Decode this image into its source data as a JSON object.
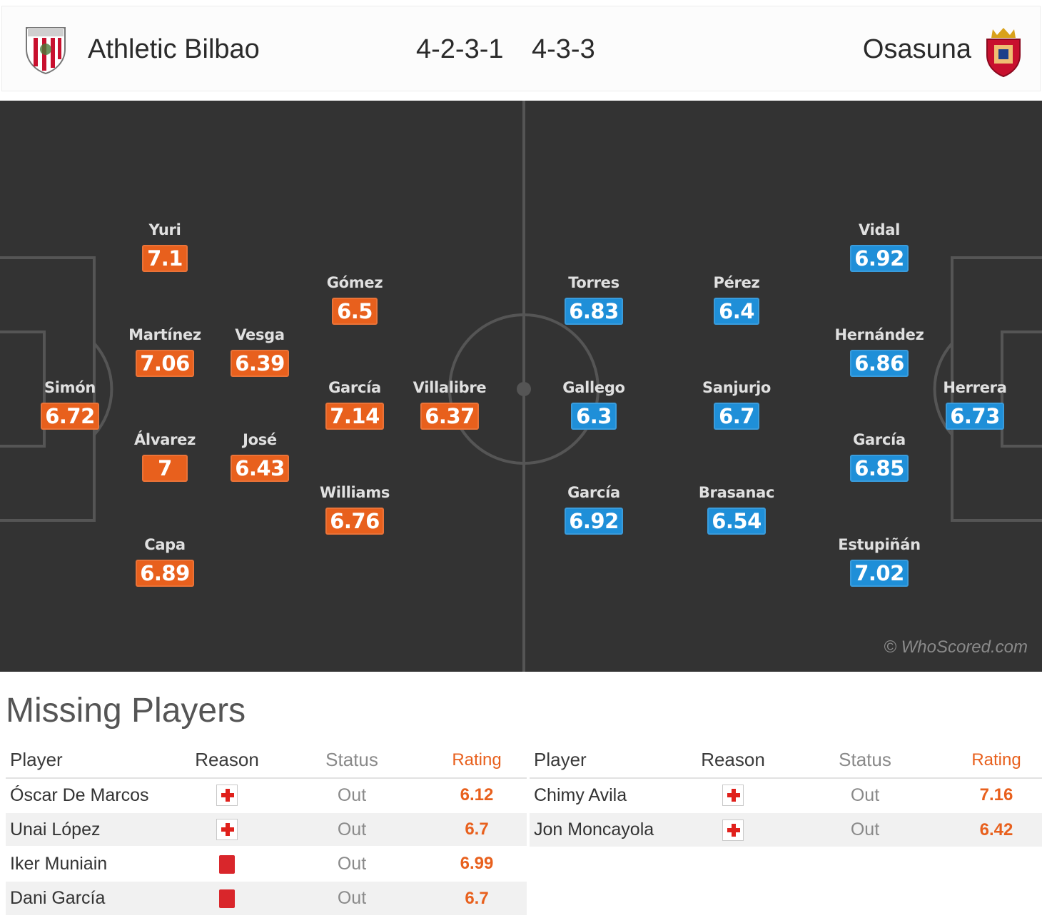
{
  "header": {
    "home_team": "Athletic Bilbao",
    "away_team": "Osasuna",
    "home_formation": "4-2-3-1",
    "away_formation": "4-3-3",
    "home_crest_icon": "athletic-bilbao-crest-icon",
    "away_crest_icon": "osasuna-crest-icon"
  },
  "colors": {
    "home_rating": "#e8601d",
    "away_rating": "#1f8fd8",
    "pitch": "#333333"
  },
  "pitch": {
    "watermark": "© WhoScored.com",
    "home_players": [
      {
        "name": "Simón",
        "rating": "6.72"
      },
      {
        "name": "Yuri",
        "rating": "7.1"
      },
      {
        "name": "Martínez",
        "rating": "7.06"
      },
      {
        "name": "Álvarez",
        "rating": "7"
      },
      {
        "name": "Capa",
        "rating": "6.89"
      },
      {
        "name": "Vesga",
        "rating": "6.39"
      },
      {
        "name": "José",
        "rating": "6.43"
      },
      {
        "name": "Gómez",
        "rating": "6.5"
      },
      {
        "name": "García",
        "rating": "7.14"
      },
      {
        "name": "Williams",
        "rating": "6.76"
      },
      {
        "name": "Villalibre",
        "rating": "6.37"
      }
    ],
    "away_players": [
      {
        "name": "Herrera",
        "rating": "6.73"
      },
      {
        "name": "Vidal",
        "rating": "6.92"
      },
      {
        "name": "Hernández",
        "rating": "6.86"
      },
      {
        "name": "García",
        "rating": "6.85"
      },
      {
        "name": "Estupiñán",
        "rating": "7.02"
      },
      {
        "name": "Pérez",
        "rating": "6.4"
      },
      {
        "name": "Sanjurjo",
        "rating": "6.7"
      },
      {
        "name": "Brasanac",
        "rating": "6.54"
      },
      {
        "name": "Torres",
        "rating": "6.83"
      },
      {
        "name": "Gallego",
        "rating": "6.3"
      },
      {
        "name": "García",
        "rating": "6.92"
      }
    ]
  },
  "missing": {
    "title": "Missing Players",
    "columns": {
      "player": "Player",
      "reason": "Reason",
      "status": "Status",
      "rating": "Rating"
    },
    "home": [
      {
        "player": "Óscar De Marcos",
        "reason_icon": "injury-icon",
        "status": "Out",
        "rating": "6.12"
      },
      {
        "player": "Unai López",
        "reason_icon": "injury-icon",
        "status": "Out",
        "rating": "6.7"
      },
      {
        "player": "Iker Muniain",
        "reason_icon": "red-card-icon",
        "status": "Out",
        "rating": "6.99"
      },
      {
        "player": "Dani García",
        "reason_icon": "red-card-icon",
        "status": "Out",
        "rating": "6.7"
      }
    ],
    "away": [
      {
        "player": "Chimy Avila",
        "reason_icon": "injury-icon",
        "status": "Out",
        "rating": "7.16"
      },
      {
        "player": "Jon Moncayola",
        "reason_icon": "injury-icon",
        "status": "Out",
        "rating": "6.42"
      }
    ]
  }
}
